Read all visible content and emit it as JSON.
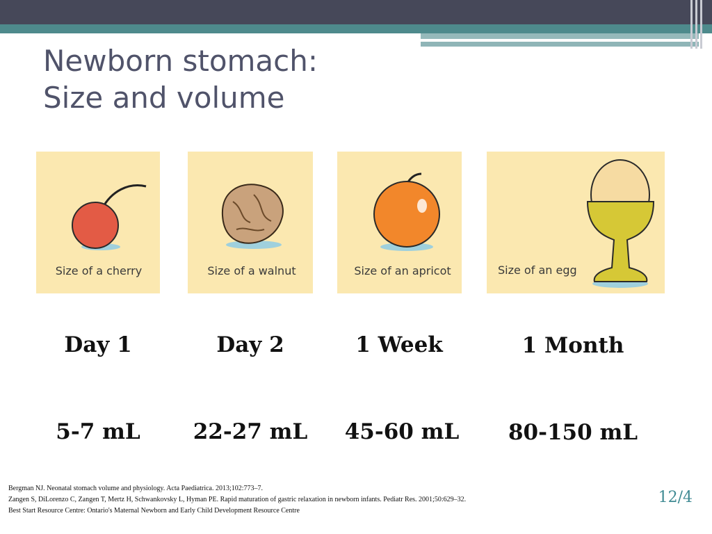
{
  "title_lines": [
    "Newborn stomach:",
    "Size and volume"
  ],
  "items": [
    {
      "caption": "Size of a cherry",
      "age": "Day 1",
      "volume": "5-7 mL"
    },
    {
      "caption": "Size of a walnut",
      "age": "Day 2",
      "volume": "22-27 mL"
    },
    {
      "caption": "Size of an apricot",
      "age": "1 Week",
      "volume": "45-60 mL"
    },
    {
      "caption": "Size of an egg",
      "age": "1 Month",
      "volume": "80-150 mL"
    }
  ],
  "references": [
    "Bergman NJ. Neonatal stomach volume and physiology. Acta Paediatrica. 2013;102:773–7.",
    "Zangen S, DiLorenzo C, Zangen T, Mertz H, Schwankovsky L, Hyman PE. Rapid maturation of gastric relaxation in newborn infants. Pediatr Res. 2001;50:629–32.",
    "Best Start Resource Centre: Ontario's Maternal Newborn and Early Child Development Resource Centre"
  ],
  "page_number": "12/4"
}
